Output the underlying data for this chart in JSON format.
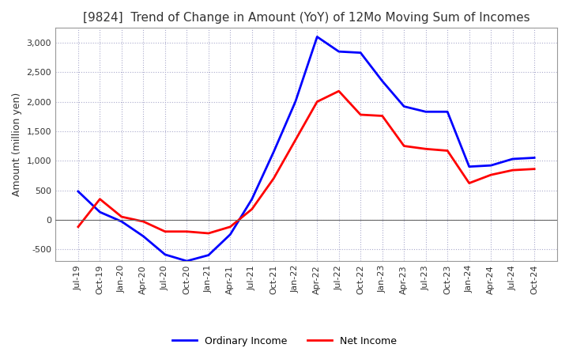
{
  "title": "[9824]  Trend of Change in Amount (YoY) of 12Mo Moving Sum of Incomes",
  "ylabel": "Amount (million yen)",
  "x_labels": [
    "Jul-19",
    "Oct-19",
    "Jan-20",
    "Apr-20",
    "Jul-20",
    "Oct-20",
    "Jan-21",
    "Apr-21",
    "Jul-21",
    "Oct-21",
    "Jan-22",
    "Apr-22",
    "Jul-22",
    "Oct-22",
    "Jan-23",
    "Apr-23",
    "Jul-23",
    "Oct-23",
    "Jan-24",
    "Apr-24",
    "Jul-24",
    "Oct-24"
  ],
  "ordinary_income": [
    480,
    130,
    -30,
    -280,
    -590,
    -700,
    -600,
    -250,
    350,
    1150,
    2000,
    3100,
    2850,
    2830,
    2350,
    1920,
    1830,
    1830,
    900,
    920,
    1030,
    1050
  ],
  "net_income": [
    -120,
    350,
    50,
    -30,
    -200,
    -200,
    -230,
    -120,
    180,
    700,
    1350,
    2000,
    2180,
    1780,
    1760,
    1250,
    1200,
    1170,
    620,
    760,
    840,
    860
  ],
  "ordinary_color": "#0000ff",
  "net_color": "#ff0000",
  "ylim": [
    -700,
    3250
  ],
  "yticks": [
    -500,
    0,
    500,
    1000,
    1500,
    2000,
    2500,
    3000
  ],
  "background_color": "#ffffff",
  "grid_color": "#aaaacc",
  "title_fontsize": 11,
  "title_color": "#333333",
  "legend_labels": [
    "Ordinary Income",
    "Net Income"
  ]
}
